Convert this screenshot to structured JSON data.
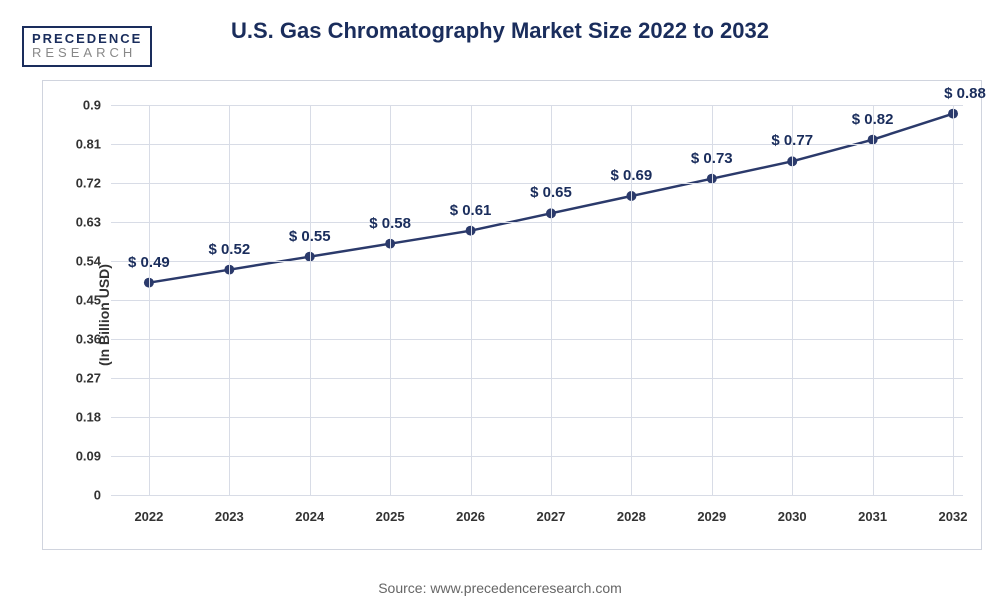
{
  "logo": {
    "top": "PRECEDENCE",
    "bottom": "RESEARCH"
  },
  "title": "U.S. Gas Chromatography Market Size 2022 to 2032",
  "ylabel": "(In Billion USD)",
  "source": "Source: www.precedenceresearch.com",
  "chart": {
    "type": "line",
    "ylim": [
      0,
      0.9
    ],
    "ytick_step": 0.09,
    "yticks": [
      "0",
      "0.09",
      "0.18",
      "0.27",
      "0.36",
      "0.45",
      "0.54",
      "0.63",
      "0.72",
      "0.81",
      "0.9"
    ],
    "categories": [
      "2022",
      "2023",
      "2024",
      "2025",
      "2026",
      "2027",
      "2028",
      "2029",
      "2030",
      "2031",
      "2032"
    ],
    "values": [
      0.49,
      0.52,
      0.55,
      0.58,
      0.61,
      0.65,
      0.69,
      0.73,
      0.77,
      0.82,
      0.88
    ],
    "data_labels": [
      "$ 0.49",
      "$ 0.52",
      "$ 0.55",
      "$ 0.58",
      "$ 0.61",
      "$ 0.65",
      "$ 0.69",
      "$ 0.73",
      "$ 0.77",
      "$ 0.82",
      "$ 0.88"
    ],
    "line_color": "#2b3a6b",
    "marker_fill": "#2b3a6b",
    "marker_radius": 5,
    "line_width": 2.5,
    "grid_color": "#d8dce6",
    "background_color": "#ffffff",
    "label_offset_y": 26,
    "label_last_offset_x": 12
  }
}
